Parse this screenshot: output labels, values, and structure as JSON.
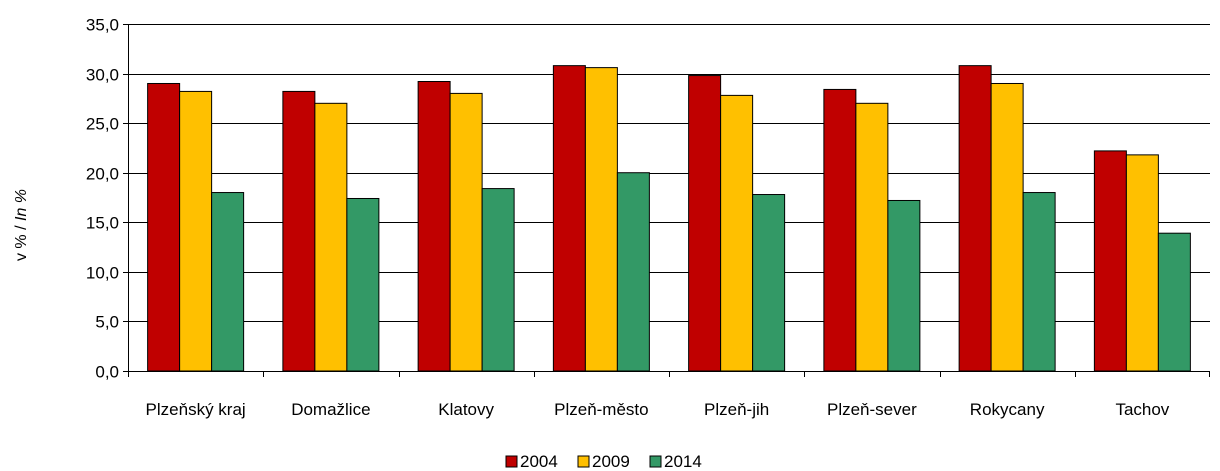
{
  "chart_data": {
    "type": "bar",
    "title": "",
    "xlabel": "",
    "ylabel_prefix": "v % / ",
    "ylabel_italic": "In %",
    "ylim": [
      0,
      35
    ],
    "ytick_step": 5,
    "ytick_labels": [
      "0,0",
      "5,0",
      "10,0",
      "15,0",
      "20,0",
      "25,0",
      "30,0",
      "35,0"
    ],
    "grid": true,
    "legend_position": "bottom",
    "categories": [
      "Plzeňský kraj",
      "Domažlice",
      "Klatovy",
      "Plzeň-město",
      "Plzeň-jih",
      "Plzeň-sever",
      "Rokycany",
      "Tachov"
    ],
    "series": [
      {
        "name": "2004",
        "color": "#c00000",
        "values": [
          29.0,
          28.2,
          29.2,
          30.8,
          29.8,
          28.4,
          30.8,
          22.2
        ]
      },
      {
        "name": "2009",
        "color": "#ffc000",
        "values": [
          28.2,
          27.0,
          28.0,
          30.6,
          27.8,
          27.0,
          29.0,
          21.8
        ]
      },
      {
        "name": "2014",
        "color": "#339966",
        "values": [
          18.0,
          17.4,
          18.4,
          20.0,
          17.8,
          17.2,
          18.0,
          13.9
        ]
      }
    ]
  }
}
